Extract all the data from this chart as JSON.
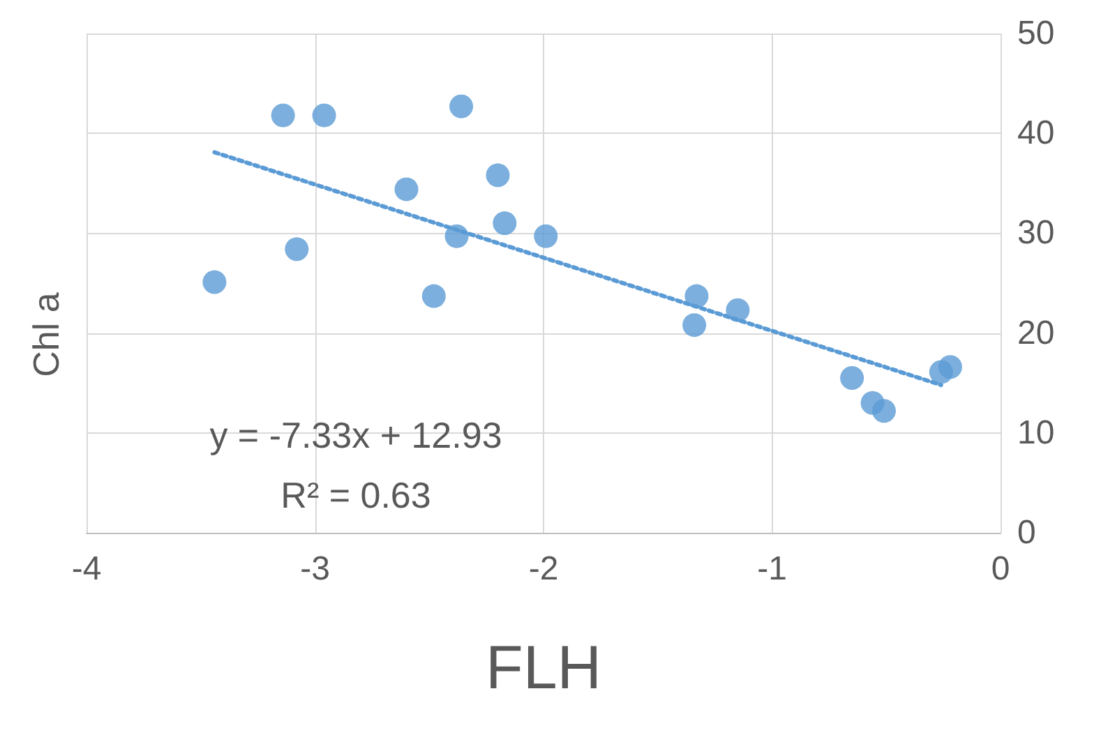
{
  "chart_data": {
    "type": "scatter",
    "xlabel": "FLH",
    "ylabel": "Chl a",
    "xlim": [
      -4,
      0
    ],
    "xticks": [
      -4,
      -3,
      -2,
      -1,
      0
    ],
    "ylim": [
      0,
      50
    ],
    "yticks": [
      0,
      10,
      20,
      30,
      40,
      50
    ],
    "grid": true,
    "marker": "circle",
    "annotations": [
      "y = -7.33x + 12.93",
      "R² = 0.63"
    ],
    "series": [
      {
        "color": "#5b9bd5",
        "x": [
          -3.44,
          -3.14,
          -2.96,
          -3.08,
          -2.36,
          -2.6,
          -2.2,
          -2.38,
          -2.17,
          -1.99,
          -2.48,
          -1.33,
          -1.34,
          -1.15,
          -0.65,
          -0.56,
          -0.51,
          -0.26,
          -0.22
        ],
        "values": [
          25.1,
          41.8,
          41.8,
          28.4,
          42.7,
          34.4,
          35.8,
          29.7,
          31.0,
          29.7,
          23.7,
          23.7,
          20.8,
          22.3,
          15.5,
          13.0,
          12.2,
          16.1,
          16.6
        ]
      },
      {
        "type": "line",
        "color": "#5b9bd5",
        "line_style": "dotted",
        "marker": "none",
        "x": [
          -3.44,
          -0.26
        ],
        "values": [
          38.1,
          14.8
        ]
      }
    ]
  }
}
